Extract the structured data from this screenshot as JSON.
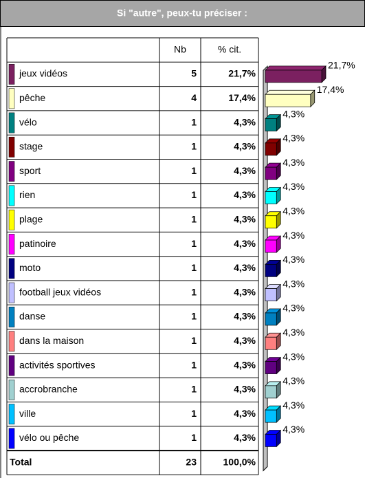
{
  "chart_data": {
    "type": "bar",
    "title": "Si \"autre\", peux-tu préciser :",
    "columns": [
      "Nb",
      "% cit."
    ],
    "categories": [
      "jeux vidéos",
      "pêche",
      "vélo",
      "stage",
      "sport",
      "rien",
      "plage",
      "patinoire",
      "moto",
      "football jeux vidéos",
      "danse",
      "dans la maison",
      "activités sportives",
      "accrobranche",
      "ville",
      "vélo ou pêche"
    ],
    "colors": [
      "#7b2060",
      "#ffffc0",
      "#008080",
      "#800000",
      "#800080",
      "#00ffff",
      "#ffff00",
      "#ff00ff",
      "#000080",
      "#c0c0ff",
      "#0080c0",
      "#ff8080",
      "#600080",
      "#a0d0d0",
      "#00c0ff",
      "#0000ff"
    ],
    "counts": [
      5,
      4,
      1,
      1,
      1,
      1,
      1,
      1,
      1,
      1,
      1,
      1,
      1,
      1,
      1,
      1
    ],
    "values": [
      21.7,
      17.4,
      4.3,
      4.3,
      4.3,
      4.3,
      4.3,
      4.3,
      4.3,
      4.3,
      4.3,
      4.3,
      4.3,
      4.3,
      4.3,
      4.3
    ],
    "value_labels": [
      "21,7%",
      "17,4%",
      "4,3%",
      "4,3%",
      "4,3%",
      "4,3%",
      "4,3%",
      "4,3%",
      "4,3%",
      "4,3%",
      "4,3%",
      "4,3%",
      "4,3%",
      "4,3%",
      "4,3%",
      "4,3%"
    ],
    "total": {
      "label": "Total",
      "count": 23,
      "value": 100,
      "value_label": "100,0%"
    }
  }
}
